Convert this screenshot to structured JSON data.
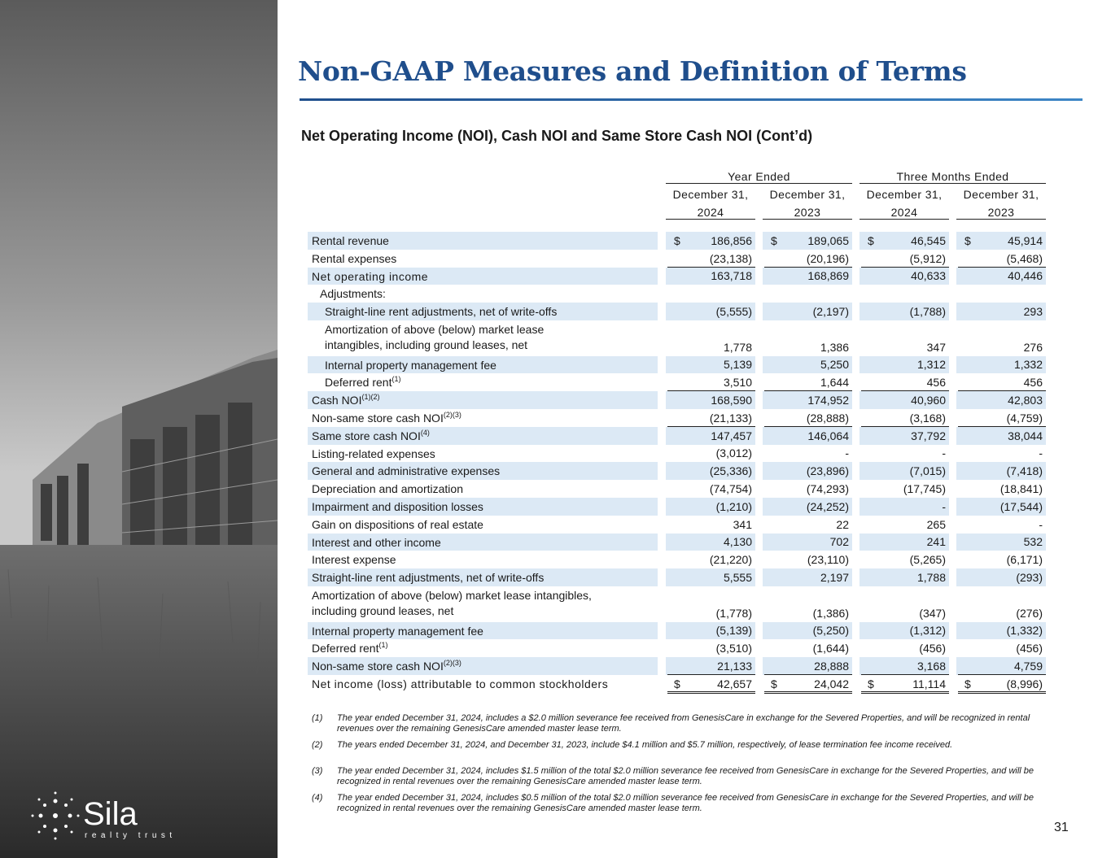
{
  "title": "Non-GAAP Measures and Definition of Terms",
  "subtitle": "Net Operating Income (NOI), Cash NOI and Same Store Cash NOI (Cont’d)",
  "logo": {
    "name": "Sila",
    "tagline": "realty trust"
  },
  "page_number": "31",
  "table": {
    "groups": [
      "Year Ended",
      "Three Months Ended"
    ],
    "columns": [
      [
        "December 31,",
        "2024"
      ],
      [
        "December 31,",
        "2023"
      ],
      [
        "December 31,",
        "2024"
      ],
      [
        "December 31,",
        "2023"
      ]
    ],
    "rows": [
      {
        "label": "Rental revenue",
        "currency": "$",
        "values": [
          "186,856",
          "189,065",
          "46,545",
          "45,914"
        ]
      },
      {
        "label": "Rental expenses",
        "values": [
          "(23,138)",
          "(20,196)",
          "(5,912)",
          "(5,468)"
        ]
      },
      {
        "label": "Net operating income",
        "values": [
          "163,718",
          "168,869",
          "40,633",
          "40,446"
        ]
      },
      {
        "label": "Adjustments:"
      },
      {
        "label": "Straight-line rent adjustments, net of write-offs",
        "values": [
          "(5,555)",
          "(2,197)",
          "(1,788)",
          "293"
        ]
      },
      {
        "label": [
          "Amortization of above (below) market lease",
          "intangibles, including ground leases, net"
        ],
        "values": [
          "1,778",
          "1,386",
          "347",
          "276"
        ]
      },
      {
        "label": "Internal property management fee",
        "values": [
          "5,139",
          "5,250",
          "1,312",
          "1,332"
        ]
      },
      {
        "label": "Deferred rent",
        "sup": "(1)",
        "values": [
          "3,510",
          "1,644",
          "456",
          "456"
        ]
      },
      {
        "label": "Cash NOI",
        "sup": "(1)(2)",
        "values": [
          "168,590",
          "174,952",
          "40,960",
          "42,803"
        ]
      },
      {
        "label": "Non-same store cash NOI",
        "sup": "(2)(3)",
        "values": [
          "(21,133)",
          "(28,888)",
          "(3,168)",
          "(4,759)"
        ]
      },
      {
        "label": "Same store cash NOI",
        "sup": "(4)",
        "values": [
          "147,457",
          "146,064",
          "37,792",
          "38,044"
        ]
      },
      {
        "label": "Listing-related expenses",
        "values": [
          "(3,012)",
          "-",
          "-",
          "-"
        ]
      },
      {
        "label": "General and administrative expenses",
        "values": [
          "(25,336)",
          "(23,896)",
          "(7,015)",
          "(7,418)"
        ]
      },
      {
        "label": "Depreciation and amortization",
        "values": [
          "(74,754)",
          "(74,293)",
          "(17,745)",
          "(18,841)"
        ]
      },
      {
        "label": "Impairment and disposition losses",
        "values": [
          "(1,210)",
          "(24,252)",
          "-",
          "(17,544)"
        ]
      },
      {
        "label": "Gain on dispositions of real estate",
        "values": [
          "341",
          "22",
          "265",
          "-"
        ]
      },
      {
        "label": "Interest and other income",
        "values": [
          "4,130",
          "702",
          "241",
          "532"
        ]
      },
      {
        "label": "Interest expense",
        "values": [
          "(21,220)",
          "(23,110)",
          "(5,265)",
          "(6,171)"
        ]
      },
      {
        "label": "Straight-line rent adjustments, net of write-offs",
        "values": [
          "5,555",
          "2,197",
          "1,788",
          "(293)"
        ]
      },
      {
        "label": [
          "Amortization of above (below) market lease intangibles,",
          "including ground leases, net"
        ],
        "values": [
          "(1,778)",
          "(1,386)",
          "(347)",
          "(276)"
        ]
      },
      {
        "label": "Internal property management fee",
        "values": [
          "(5,139)",
          "(5,250)",
          "(1,312)",
          "(1,332)"
        ]
      },
      {
        "label": "Deferred rent",
        "sup": "(1)",
        "values": [
          "(3,510)",
          "(1,644)",
          "(456)",
          "(456)"
        ]
      },
      {
        "label": "Non-same store cash NOI",
        "sup": "(2)(3)",
        "values": [
          "21,133",
          "28,888",
          "3,168",
          "4,759"
        ]
      },
      {
        "label": "Net income (loss) attributable to common stockholders",
        "currency": "$",
        "values": [
          "42,657",
          "24,042",
          "11,114",
          "(8,996)"
        ]
      }
    ]
  },
  "footnotes": [
    {
      "marker": "(1)",
      "text": "The year ended December 31, 2024, includes a $2.0 million severance fee received from GenesisCare in exchange for the Severed Properties, and will be recognized in rental revenues over the remaining GenesisCare amended master lease term."
    },
    {
      "marker": "(2)",
      "text": "The years ended December 31, 2024, and December 31, 2023, include $4.1 million and $5.7 million, respectively, of lease termination fee income received."
    },
    {
      "marker": "(3)",
      "text": "The year ended December 31, 2024, includes $1.5 million of the total $2.0 million severance fee received from GenesisCare in exchange for the Severed Properties, and will be recognized in rental revenues over the remaining GenesisCare amended master lease term."
    },
    {
      "marker": "(4)",
      "text": "The year ended December 31, 2024,  includes $0.5 million of the total $2.0 million severance fee received from GenesisCare in exchange for the Severed Properties, and will be recognized in rental revenues over the remaining GenesisCare amended master lease term."
    }
  ]
}
